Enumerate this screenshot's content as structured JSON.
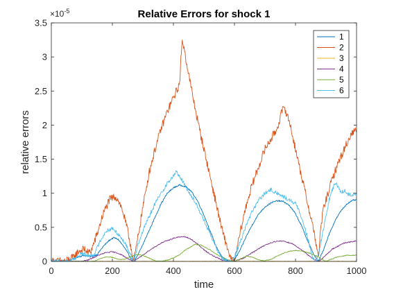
{
  "chart_data": {
    "type": "line",
    "title": "Relative Errors for shock 1",
    "xlabel": "time",
    "ylabel": "relative errors",
    "y_exponent_base": "×10",
    "y_exponent_power": "-5",
    "xlim": [
      0,
      1000
    ],
    "ylim": [
      0,
      3.5
    ],
    "x_ticks": [
      0,
      200,
      400,
      600,
      800,
      1000
    ],
    "x_tick_labels": [
      "0",
      "200",
      "400",
      "600",
      "800",
      "1000"
    ],
    "y_ticks": [
      0,
      0.5,
      1,
      1.5,
      2,
      2.5,
      3,
      3.5
    ],
    "y_tick_labels": [
      "0",
      "0.5",
      "1",
      "1.5",
      "2",
      "2.5",
      "3",
      "3.5"
    ],
    "grid": false,
    "legend_position": "top-right",
    "series": [
      {
        "name": "1",
        "color": "#0072BD",
        "noise": 0.01,
        "x": [
          0,
          30,
          60,
          90,
          110,
          130,
          150,
          170,
          190,
          205,
          220,
          240,
          260,
          270,
          280,
          300,
          320,
          340,
          360,
          380,
          400,
          420,
          440,
          460,
          480,
          500,
          520,
          540,
          560,
          580,
          600,
          620,
          640,
          660,
          680,
          700,
          720,
          740,
          760,
          780,
          800,
          820,
          840,
          860,
          875,
          890,
          910,
          930,
          950,
          970,
          990,
          1000
        ],
        "y": [
          0,
          0,
          0.02,
          0.07,
          0.09,
          0.07,
          0.1,
          0.22,
          0.31,
          0.35,
          0.32,
          0.2,
          0.05,
          0,
          0.06,
          0.25,
          0.45,
          0.65,
          0.85,
          1.0,
          1.08,
          1.12,
          1.1,
          1.02,
          0.88,
          0.68,
          0.45,
          0.22,
          0.06,
          0,
          0.02,
          0.18,
          0.38,
          0.55,
          0.7,
          0.8,
          0.86,
          0.89,
          0.88,
          0.82,
          0.7,
          0.52,
          0.3,
          0.1,
          0,
          0.15,
          0.4,
          0.6,
          0.75,
          0.85,
          0.9,
          0.9
        ]
      },
      {
        "name": "2",
        "color": "#D95319",
        "noise": 0.06,
        "x": [
          0,
          40,
          70,
          90,
          110,
          120,
          130,
          150,
          170,
          190,
          200,
          210,
          220,
          235,
          250,
          265,
          270,
          280,
          300,
          320,
          340,
          360,
          380,
          400,
          410,
          420,
          425,
          430,
          440,
          460,
          480,
          500,
          520,
          540,
          560,
          580,
          590,
          600,
          620,
          640,
          660,
          680,
          700,
          720,
          740,
          755,
          765,
          780,
          800,
          820,
          840,
          860,
          870,
          875,
          880,
          890,
          900,
          910,
          920,
          940,
          960,
          980,
          1000
        ],
        "y": [
          0,
          0,
          0.05,
          0.15,
          0.18,
          0.12,
          0.15,
          0.4,
          0.7,
          0.9,
          0.93,
          0.95,
          0.9,
          0.72,
          0.45,
          0.12,
          0,
          0.25,
          0.8,
          1.3,
          1.65,
          1.95,
          2.2,
          2.4,
          2.5,
          2.6,
          3.0,
          3.25,
          3.0,
          2.5,
          2.05,
          1.65,
          1.25,
          0.85,
          0.45,
          0.15,
          0.02,
          0,
          0.45,
          0.85,
          1.15,
          1.4,
          1.65,
          1.8,
          1.95,
          2.2,
          2.25,
          2.05,
          1.65,
          1.25,
          0.85,
          0.45,
          0.2,
          0.02,
          0.35,
          0.75,
          0.9,
          1.05,
          1.2,
          1.45,
          1.65,
          1.85,
          1.95
        ]
      },
      {
        "name": "3",
        "color": "#EDB120",
        "noise": 0.005,
        "x": [
          0,
          100,
          200,
          300,
          400,
          500,
          600,
          700,
          800,
          900,
          1000
        ],
        "y": [
          0,
          0,
          0,
          0,
          0,
          0,
          0,
          0,
          0,
          0,
          0
        ]
      },
      {
        "name": "4",
        "color": "#7E2F8E",
        "noise": 0.008,
        "x": [
          0,
          100,
          120,
          140,
          160,
          180,
          200,
          220,
          240,
          260,
          270,
          290,
          320,
          360,
          400,
          420,
          440,
          460,
          480,
          500,
          530,
          560,
          590,
          600,
          630,
          670,
          700,
          730,
          760,
          790,
          820,
          850,
          870,
          875,
          890,
          920,
          960,
          1000
        ],
        "y": [
          0,
          0,
          0.02,
          0.06,
          0.1,
          0.13,
          0.14,
          0.12,
          0.07,
          0.02,
          0,
          0.06,
          0.16,
          0.27,
          0.34,
          0.36,
          0.36,
          0.32,
          0.25,
          0.17,
          0.08,
          0.02,
          0,
          0,
          0.05,
          0.16,
          0.24,
          0.29,
          0.3,
          0.26,
          0.17,
          0.06,
          0.01,
          0,
          0.05,
          0.18,
          0.27,
          0.3
        ]
      },
      {
        "name": "5",
        "color": "#77AC30",
        "noise": 0.006,
        "x": [
          0,
          140,
          160,
          180,
          200,
          220,
          240,
          260,
          280,
          300,
          320,
          340,
          360,
          380,
          400,
          420,
          440,
          460,
          470,
          490,
          520,
          550,
          580,
          600,
          620,
          640,
          660,
          680,
          700,
          720,
          740,
          760,
          780,
          800,
          820,
          840,
          860,
          880,
          900,
          910,
          940,
          970,
          1000
        ],
        "y": [
          0,
          0,
          0.04,
          0.07,
          0.06,
          0.03,
          0.03,
          0.07,
          0.1,
          0.09,
          0.05,
          0.01,
          0,
          0.02,
          0.05,
          0.1,
          0.17,
          0.22,
          0.25,
          0.24,
          0.17,
          0.08,
          0.02,
          0,
          0.04,
          0.08,
          0.06,
          0.02,
          0.01,
          0.03,
          0.08,
          0.12,
          0.15,
          0.16,
          0.15,
          0.13,
          0.1,
          0.05,
          0,
          0.02,
          0.07,
          0.09,
          0.09
        ]
      },
      {
        "name": "6",
        "color": "#4DBEEE",
        "noise": 0.03,
        "x": [
          0,
          50,
          80,
          100,
          120,
          140,
          160,
          180,
          200,
          220,
          240,
          260,
          270,
          280,
          300,
          320,
          340,
          360,
          380,
          400,
          410,
          420,
          440,
          460,
          480,
          500,
          520,
          540,
          560,
          580,
          590,
          600,
          620,
          640,
          660,
          680,
          700,
          720,
          740,
          760,
          780,
          800,
          820,
          840,
          855,
          870,
          880,
          890,
          900,
          910,
          920,
          930,
          940,
          950,
          960,
          970,
          980,
          1000
        ],
        "y": [
          0,
          0,
          0.05,
          0.12,
          0.08,
          0.1,
          0.3,
          0.45,
          0.48,
          0.4,
          0.28,
          0.1,
          0,
          0.2,
          0.45,
          0.65,
          0.85,
          1.0,
          1.15,
          1.25,
          1.32,
          1.25,
          1.1,
          0.95,
          0.8,
          0.6,
          0.4,
          0.2,
          0.05,
          0,
          0,
          0.05,
          0.3,
          0.55,
          0.75,
          0.9,
          1.0,
          1.05,
          1.0,
          0.95,
          0.9,
          0.85,
          0.65,
          0.35,
          0.05,
          0,
          0.2,
          0.45,
          0.65,
          0.9,
          1.05,
          1.15,
          1.1,
          1.0,
          1.05,
          1.0,
          0.97,
          1.0
        ]
      }
    ]
  }
}
